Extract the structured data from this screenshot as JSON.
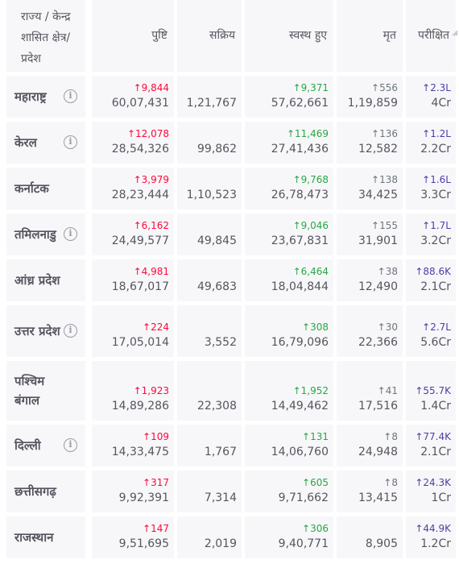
{
  "header": {
    "state": "राज्य / केन्द्र शासित क्षेत्र/ प्रदेश",
    "confirmed": "पुष्टि",
    "active": "सक्रिय",
    "recovered": "स्वस्थ हुए",
    "deceased": "मृत",
    "tested": "परीक्षित"
  },
  "arrow": "↑",
  "rows": [
    {
      "name": "महाराष्ट्र",
      "info": true,
      "confirmed_delta": "↑9,844",
      "confirmed": "60,07,431",
      "active": "1,21,767",
      "recovered_delta": "↑9,371",
      "recovered": "57,62,661",
      "deceased_delta": "↑556",
      "deceased": "1,19,859",
      "tested_delta": "↑2.3L",
      "tested": "4Cr"
    },
    {
      "name": "केरल",
      "info": true,
      "confirmed_delta": "↑12,078",
      "confirmed": "28,54,326",
      "active": "99,862",
      "recovered_delta": "↑11,469",
      "recovered": "27,41,436",
      "deceased_delta": "↑136",
      "deceased": "12,582",
      "tested_delta": "↑1.2L",
      "tested": "2.2Cr"
    },
    {
      "name": "कर्नाटक",
      "info": false,
      "confirmed_delta": "↑3,979",
      "confirmed": "28,23,444",
      "active": "1,10,523",
      "recovered_delta": "↑9,768",
      "recovered": "26,78,473",
      "deceased_delta": "↑138",
      "deceased": "34,425",
      "tested_delta": "↑1.6L",
      "tested": "3.3Cr"
    },
    {
      "name": "तमिलनाडु",
      "info": true,
      "confirmed_delta": "↑6,162",
      "confirmed": "24,49,577",
      "active": "49,845",
      "recovered_delta": "↑9,046",
      "recovered": "23,67,831",
      "deceased_delta": "↑155",
      "deceased": "31,901",
      "tested_delta": "↑1.7L",
      "tested": "3.2Cr"
    },
    {
      "name": "आंध्र प्रदेश",
      "info": false,
      "confirmed_delta": "↑4,981",
      "confirmed": "18,67,017",
      "active": "49,683",
      "recovered_delta": "↑6,464",
      "recovered": "18,04,844",
      "deceased_delta": "↑38",
      "deceased": "12,490",
      "tested_delta": "↑88.6K",
      "tested": "2.1Cr"
    },
    {
      "name": "उत्तर प्रदेश",
      "info": true,
      "confirmed_delta": "↑224",
      "confirmed": "17,05,014",
      "active": "3,552",
      "recovered_delta": "↑308",
      "recovered": "16,79,096",
      "deceased_delta": "↑30",
      "deceased": "22,366",
      "tested_delta": "↑2.7L",
      "tested": "5.6Cr"
    },
    {
      "name": "पश्चिम बंगाल",
      "info": false,
      "confirmed_delta": "↑1,923",
      "confirmed": "14,89,286",
      "active": "22,308",
      "recovered_delta": "↑1,952",
      "recovered": "14,49,462",
      "deceased_delta": "↑41",
      "deceased": "17,516",
      "tested_delta": "↑55.7K",
      "tested": "1.4Cr"
    },
    {
      "name": "दिल्ली",
      "info": true,
      "confirmed_delta": "↑109",
      "confirmed": "14,33,475",
      "active": "1,767",
      "recovered_delta": "↑131",
      "recovered": "14,06,760",
      "deceased_delta": "↑8",
      "deceased": "24,948",
      "tested_delta": "↑77.4K",
      "tested": "2.1Cr"
    },
    {
      "name": "छत्तीसगढ़",
      "info": false,
      "confirmed_delta": "↑317",
      "confirmed": "9,92,391",
      "active": "7,314",
      "recovered_delta": "↑605",
      "recovered": "9,71,662",
      "deceased_delta": "↑8",
      "deceased": "13,415",
      "tested_delta": "↑24.3K",
      "tested": "1Cr"
    },
    {
      "name": "राजस्थान",
      "info": false,
      "confirmed_delta": "↑147",
      "confirmed": "9,51,695",
      "active": "2,019",
      "recovered_delta": "↑306",
      "recovered": "9,40,771",
      "deceased_delta": "",
      "deceased": "8,905",
      "tested_delta": "↑44.9K",
      "tested": "1.2Cr"
    }
  ],
  "colors": {
    "confirmed": "#ff073a",
    "recovered": "#28a745",
    "deceased": "#6c757d",
    "tested": "#4b3fa8",
    "cell_bg": "#f7f7f9"
  }
}
